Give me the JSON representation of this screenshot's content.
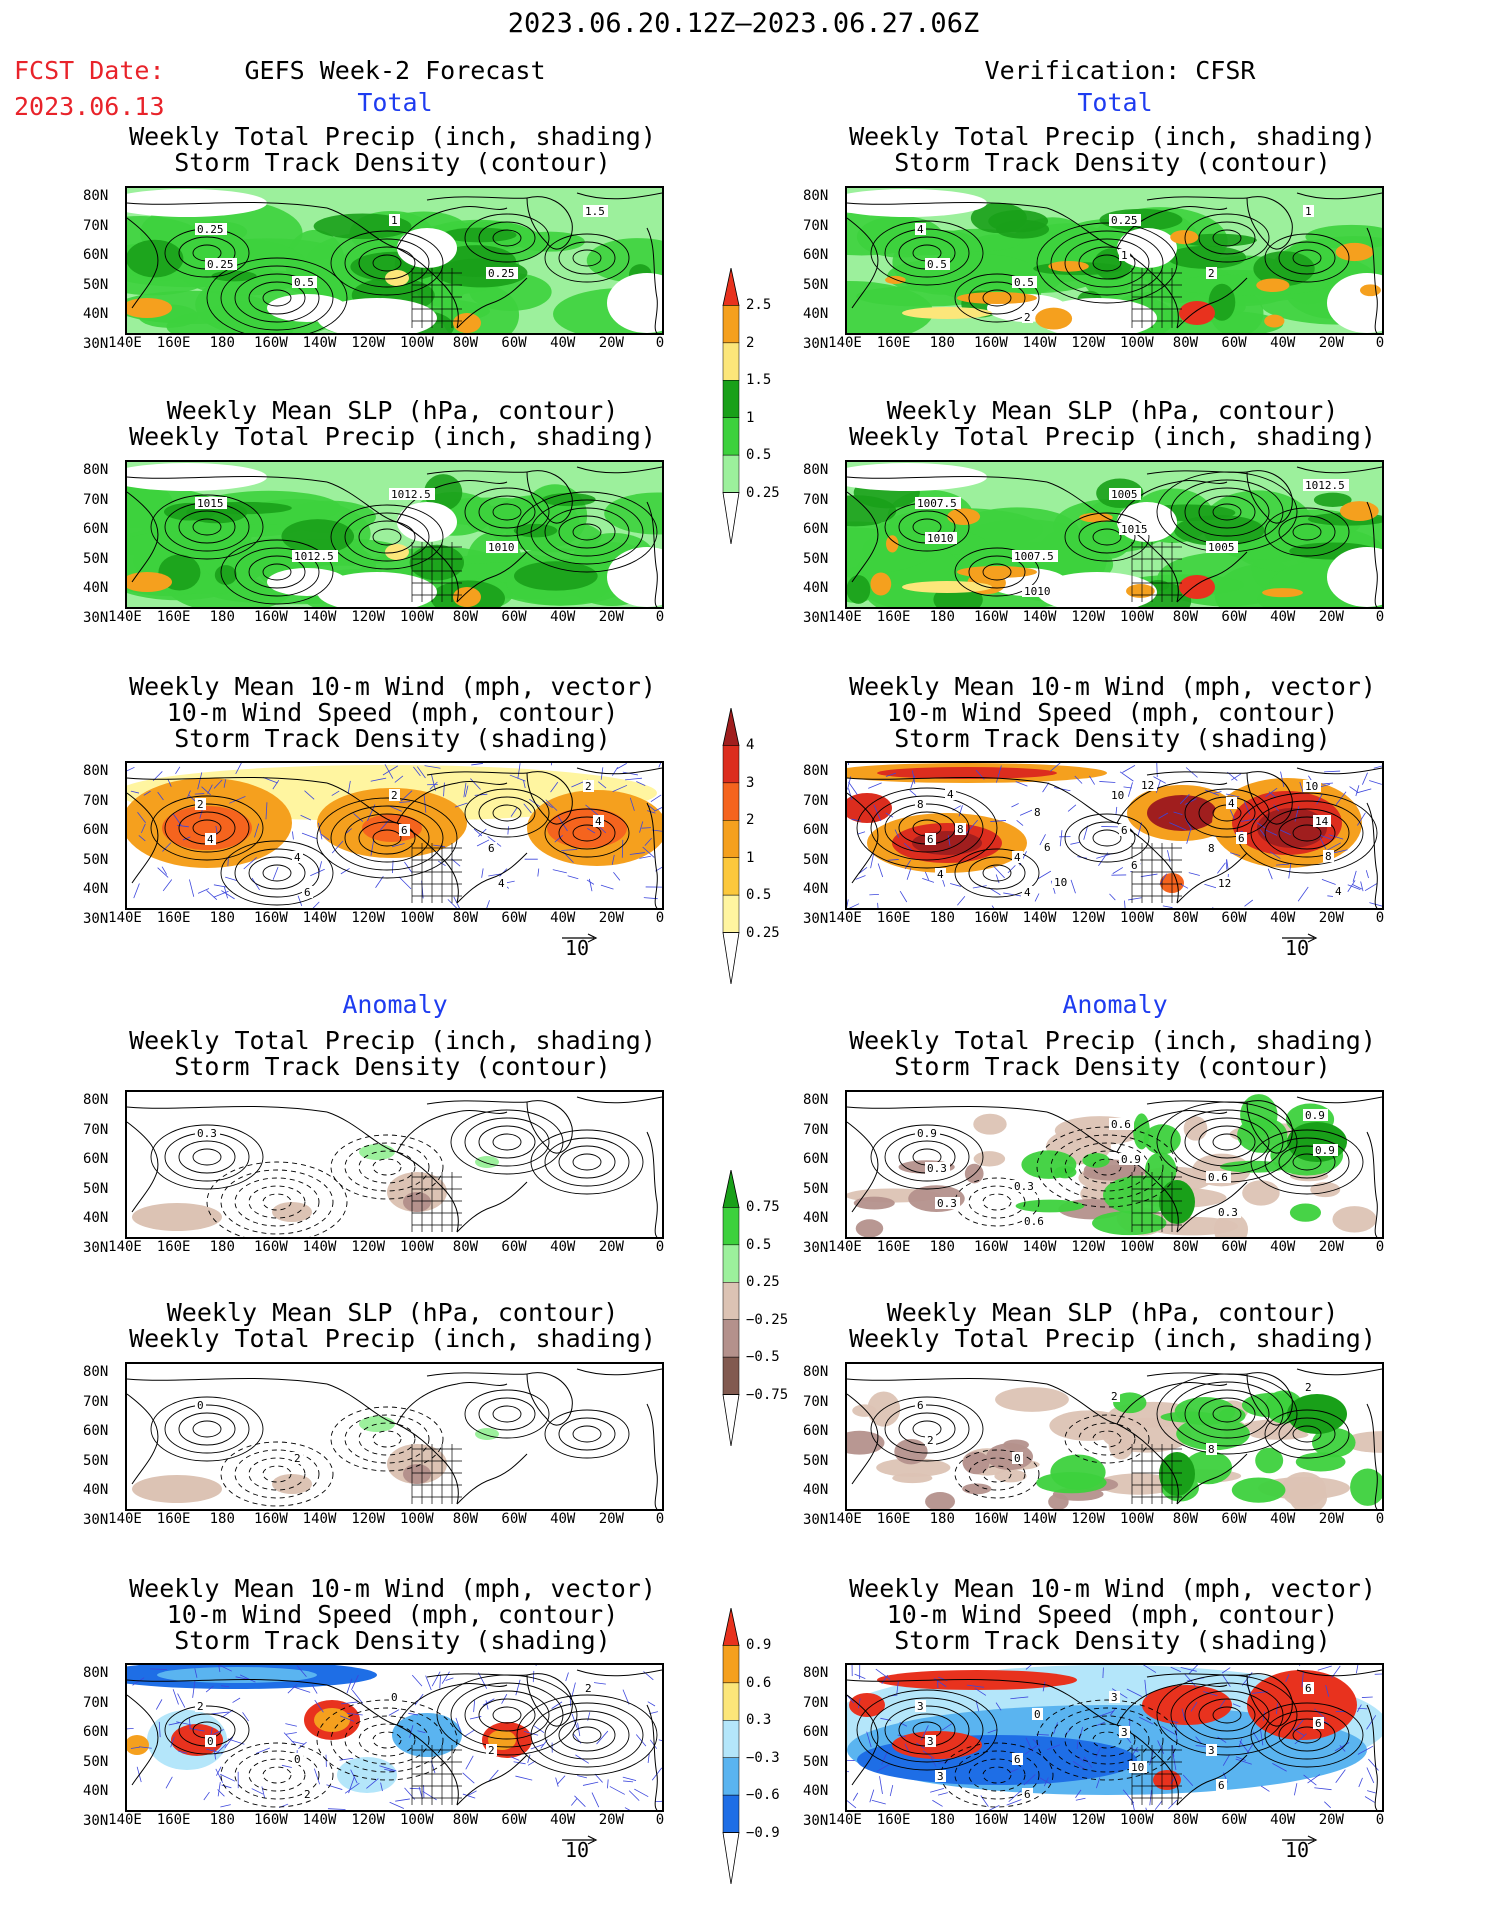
{
  "header": {
    "valid_range": "2023.06.20.12Z–2023.06.27.06Z",
    "fcst_label": "FCST Date:",
    "fcst_date": "2023.06.13",
    "left_title": "GEFS Week-2 Forecast",
    "right_title": "Verification: CFSR"
  },
  "sections": {
    "total": "Total",
    "anomaly": "Anomaly"
  },
  "titles": {
    "precip_track": [
      "Weekly Total Precip (inch, shading)",
      "Storm Track Density (contour)"
    ],
    "slp_precip": [
      "Weekly Mean SLP (hPa, contour)",
      "Weekly Total Precip (inch, shading)"
    ],
    "wind": [
      "Weekly Mean 10-m Wind (mph, vector)",
      "10-m Wind Speed (mph, contour)",
      "Storm Track Density (shading)"
    ]
  },
  "axes": {
    "lat_labels": [
      "80N",
      "70N",
      "60N",
      "50N",
      "40N",
      "30N"
    ],
    "lon_labels": [
      "140E",
      "160E",
      "180",
      "160W",
      "140W",
      "120W",
      "100W",
      "80W",
      "60W",
      "40W",
      "20W",
      "0"
    ]
  },
  "vector_ref": "10",
  "colorbars": {
    "precip_total": {
      "labels": [
        "2.5",
        "2",
        "1.5",
        "1",
        "0.5",
        "0.25"
      ],
      "colors": [
        "#e8321e",
        "#f5a01e",
        "#fce67a",
        "#19a019",
        "#3dd13d",
        "#9cf09c"
      ]
    },
    "track_total": {
      "labels": [
        "4",
        "3",
        "2",
        "1",
        "0.5",
        "0.25"
      ],
      "colors": [
        "#a01e1e",
        "#dc2d1e",
        "#f5641e",
        "#f5a01e",
        "#fcc83c",
        "#fff5a0"
      ]
    },
    "precip_anom": {
      "labels": [
        "0.75",
        "0.5",
        "0.25",
        "−0.25",
        "−0.5",
        "−0.75"
      ],
      "colors": [
        "#19a019",
        "#3dd13d",
        "#9cf09c",
        "#dcc3b4",
        "#b4918c",
        "#825a50"
      ]
    },
    "track_anom": {
      "labels": [
        "0.9",
        "0.6",
        "0.3",
        "−0.3",
        "−0.6",
        "−0.9"
      ],
      "colors": [
        "#e8321e",
        "#f5a01e",
        "#fce67a",
        "#b4e6fa",
        "#5ab4f0",
        "#1e6ee6"
      ]
    }
  },
  "contour_labels": {
    "fc_track_total": [
      "0.25",
      "0.5",
      "1",
      "0.25",
      "1.5",
      "0.25"
    ],
    "cf_track_total": [
      "4",
      "0.5",
      "0.25",
      "2",
      "1",
      "0.5",
      "2",
      "1"
    ],
    "fc_slp_total": [
      "1015",
      "1012.5",
      "1012.5",
      "1010"
    ],
    "cf_slp_total": [
      "1007.5",
      "1007.5",
      "1005",
      "1005",
      "1012.5",
      "1010",
      "1010",
      "1015"
    ],
    "fc_wind_total": [
      "2",
      "4",
      "2",
      "6",
      "2",
      "4",
      "6",
      "6",
      "4",
      "4"
    ],
    "cf_wind_total": [
      "8",
      "4",
      "10",
      "8",
      "10",
      "6",
      "4",
      "6",
      "12",
      "14",
      "4",
      "8",
      "6",
      "4",
      "8",
      "4",
      "6",
      "12",
      "6",
      "4",
      "8",
      "10"
    ],
    "fc_track_anom": [
      "0.3"
    ],
    "cf_track_anom": [
      "0.9",
      "0.3",
      "0.6",
      "0.6",
      "0.9",
      "0.3",
      "0.6",
      "0.9",
      "0.3",
      "0.9",
      "0.3"
    ],
    "fc_slp_anom": [
      "0",
      "2"
    ],
    "cf_slp_anom": [
      "6",
      "0",
      "2",
      "8",
      "2",
      "2"
    ],
    "fc_wind_anom": [
      "2",
      "0",
      "0",
      "2",
      "2",
      "0",
      "2"
    ],
    "cf_wind_anom": [
      "3",
      "6",
      "3",
      "3",
      "6",
      "3",
      "6",
      "3",
      "6",
      "6",
      "3",
      "0",
      "10"
    ]
  }
}
